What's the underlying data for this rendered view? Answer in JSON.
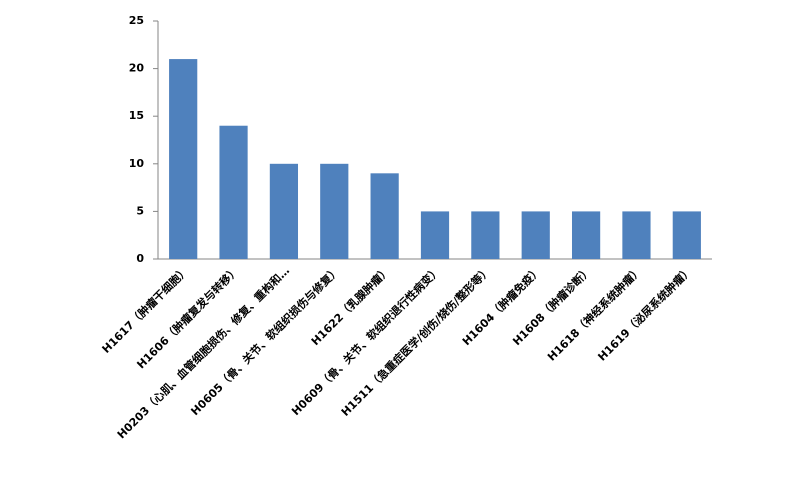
{
  "chart_data": {
    "type": "bar",
    "categories": [
      "H1617（肿瘤干细胞）",
      "H1606（肿瘤复发与转移）",
      "H0203（心肌、血管细胞损伤、修复、重构和…",
      "H0605（骨、关节、软组织损伤与修复）",
      "H1622（乳腺肿瘤）",
      "H0609（骨、关节、软组织退行性病变）",
      "H1511（急重症医学/创伤/烧伤/整形等）",
      "H1604（肿瘤免疫）",
      "H1608（肿瘤诊断）",
      "H1618（神经系统肿瘤）",
      "H1619（泌尿系统肿瘤）"
    ],
    "values": [
      21,
      14,
      10,
      10,
      9,
      5,
      5,
      5,
      5,
      5,
      5
    ],
    "color": "#4f81bd",
    "ylim": [
      0,
      25
    ],
    "yticks": [
      0,
      5,
      10,
      15,
      20,
      25
    ],
    "grid": false
  }
}
